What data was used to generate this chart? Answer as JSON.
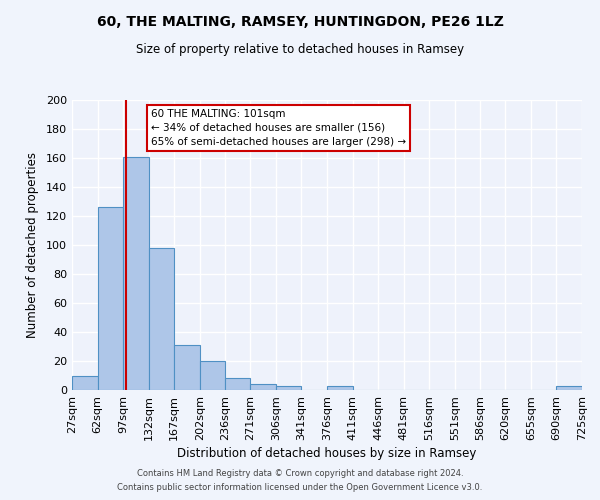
{
  "title": "60, THE MALTING, RAMSEY, HUNTINGDON, PE26 1LZ",
  "subtitle": "Size of property relative to detached houses in Ramsey",
  "xlabel": "Distribution of detached houses by size in Ramsey",
  "ylabel": "Number of detached properties",
  "bar_edges": [
    27,
    62,
    97,
    132,
    167,
    202,
    236,
    271,
    306,
    341,
    376,
    411,
    446,
    481,
    516,
    551,
    586,
    620,
    655,
    690,
    725
  ],
  "bar_heights": [
    10,
    126,
    161,
    98,
    31,
    20,
    8,
    4,
    3,
    0,
    3,
    0,
    0,
    0,
    0,
    0,
    0,
    0,
    0,
    3,
    0
  ],
  "bar_color": "#aec6e8",
  "bar_edge_color": "#4f90c4",
  "background_color": "#eef2fb",
  "fig_background_color": "#f0f4fc",
  "grid_color": "#ffffff",
  "vline_x": 101,
  "vline_color": "#cc0000",
  "annotation_title": "60 THE MALTING: 101sqm",
  "annotation_line1": "← 34% of detached houses are smaller (156)",
  "annotation_line2": "65% of semi-detached houses are larger (298) →",
  "annotation_box_color": "#ffffff",
  "annotation_box_edge_color": "#cc0000",
  "ylim": [
    0,
    200
  ],
  "xlim": [
    27,
    725
  ],
  "tick_labels": [
    "27sqm",
    "62sqm",
    "97sqm",
    "132sqm",
    "167sqm",
    "202sqm",
    "236sqm",
    "271sqm",
    "306sqm",
    "341sqm",
    "376sqm",
    "411sqm",
    "446sqm",
    "481sqm",
    "516sqm",
    "551sqm",
    "586sqm",
    "620sqm",
    "655sqm",
    "690sqm",
    "725sqm"
  ],
  "footer1": "Contains HM Land Registry data © Crown copyright and database right 2024.",
  "footer2": "Contains public sector information licensed under the Open Government Licence v3.0."
}
